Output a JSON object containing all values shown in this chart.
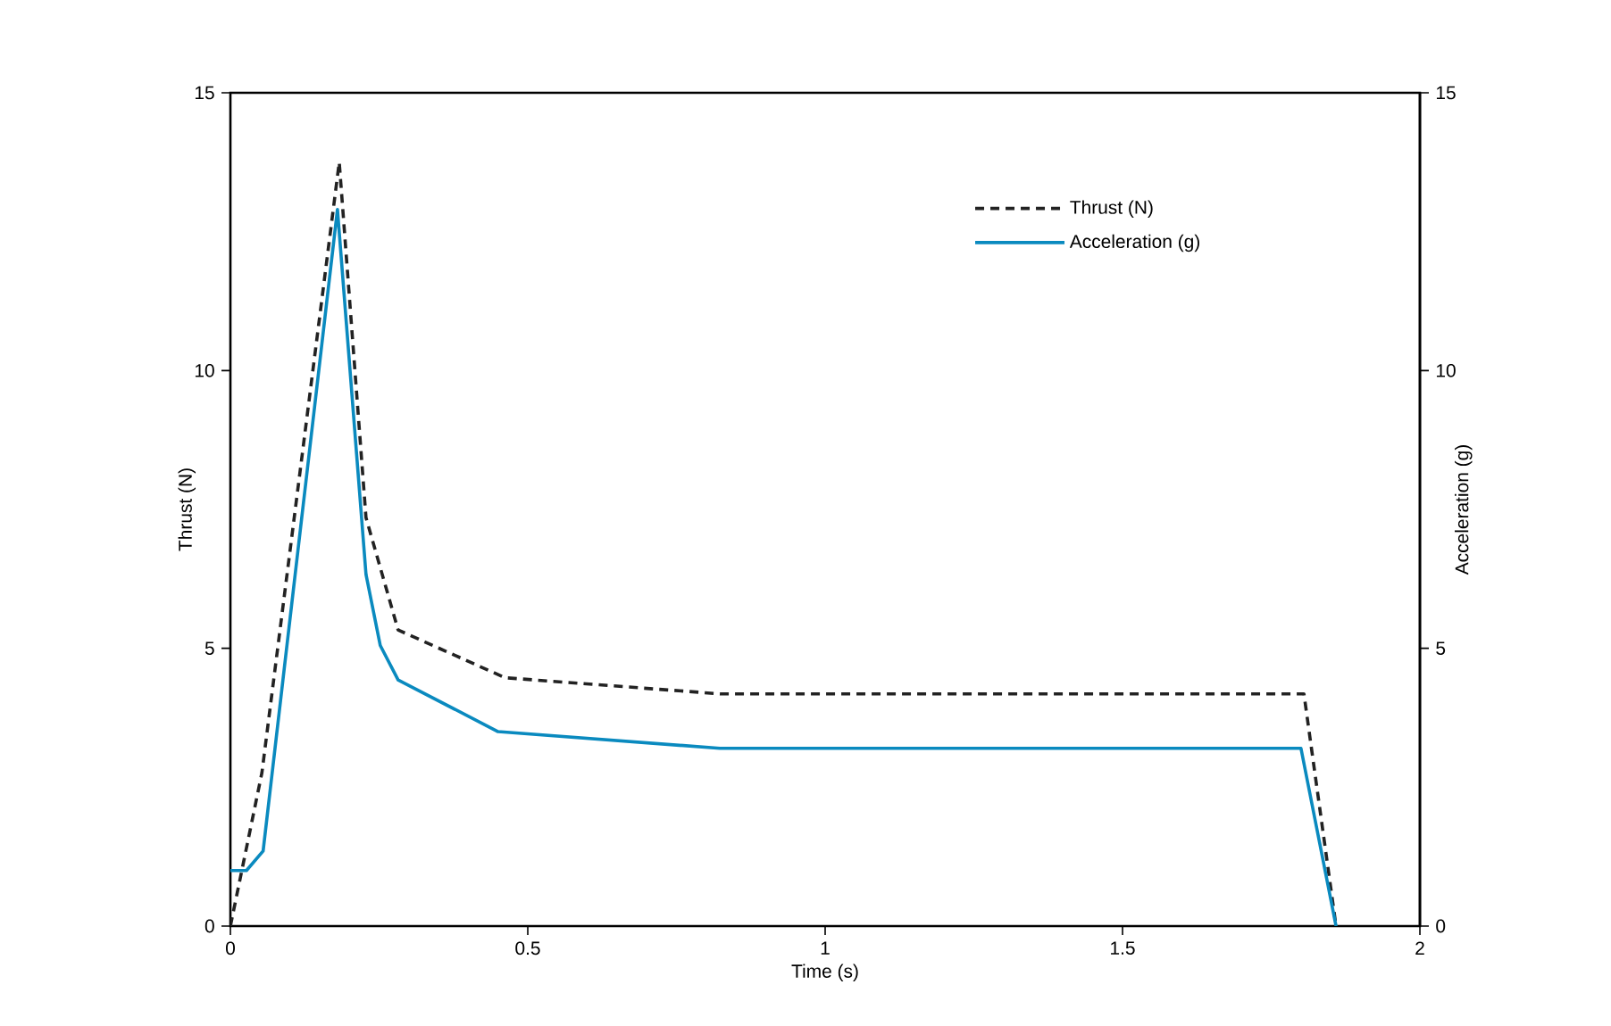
{
  "chart_data": {
    "type": "line",
    "xlabel": "Time (s)",
    "ylabel": "Thrust (N)",
    "y2label": "Acceleration (g)",
    "xlim": [
      0,
      2
    ],
    "xticks": [
      0,
      0.5,
      1,
      1.5,
      2
    ],
    "ylim": [
      0,
      15
    ],
    "yticks": [
      0,
      5,
      10,
      15
    ],
    "y2lim": [
      0,
      15
    ],
    "y2ticks": [
      0,
      5,
      10,
      15
    ],
    "legend": "top right",
    "grid": false,
    "series": [
      {
        "name": "Thrust (N)",
        "color": "#222222",
        "line_style": "dashed",
        "x": [
          0,
          0.053,
          0.183,
          0.228,
          0.282,
          0.462,
          0.823,
          1.805,
          1.859
        ],
        "values": [
          0,
          2.76,
          13.75,
          7.35,
          5.33,
          4.47,
          4.18,
          4.18,
          0
        ]
      },
      {
        "name": "Acceleration (g)",
        "color": "#0a8abf",
        "line_style": "solid",
        "axis": "y2",
        "x": [
          0,
          0.027,
          0.055,
          0.18,
          0.228,
          0.252,
          0.282,
          0.45,
          0.823,
          1.8,
          1.859
        ],
        "values": [
          1.0,
          1.0,
          1.35,
          12.9,
          6.33,
          5.05,
          4.43,
          3.5,
          3.2,
          3.2,
          0
        ]
      }
    ]
  }
}
